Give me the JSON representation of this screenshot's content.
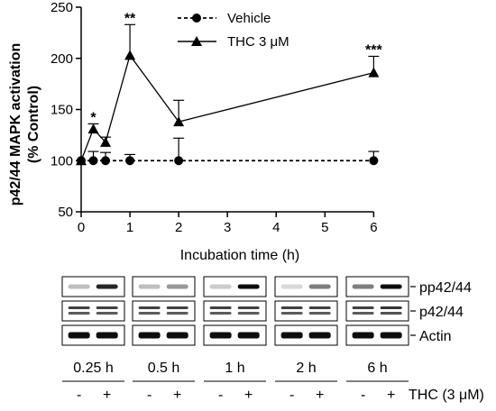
{
  "chart_data": {
    "type": "line",
    "ylabel_line1": "p42/44 MAPK activation",
    "ylabel_line2": "(% Control)",
    "xlabel": "Incubation time (h)",
    "xlim": [
      0,
      6.4
    ],
    "ylim": [
      50,
      250
    ],
    "xticks": [
      0,
      1,
      2,
      3,
      4,
      5,
      6
    ],
    "yticks": [
      50,
      100,
      150,
      200,
      250
    ],
    "legend_position": "top-right",
    "series": [
      {
        "name": "Vehicle",
        "marker": "circle",
        "line": "dashed",
        "x": [
          0,
          0.25,
          0.5,
          1,
          2,
          6
        ],
        "y": [
          100,
          100,
          100,
          100,
          100,
          100
        ],
        "err": [
          0,
          9,
          8,
          6,
          22,
          9
        ]
      },
      {
        "name": "THC 3 μM",
        "marker": "triangle",
        "line": "solid",
        "x": [
          0,
          0.25,
          0.5,
          1,
          2,
          6
        ],
        "y": [
          100,
          131,
          118,
          203,
          138,
          186
        ],
        "err": [
          0,
          5,
          5,
          30,
          21,
          16
        ]
      }
    ],
    "annotations": [
      {
        "x": 0.25,
        "y": 136,
        "text": "*"
      },
      {
        "x": 1,
        "y": 233,
        "text": "**"
      },
      {
        "x": 6,
        "y": 202,
        "text": "***"
      }
    ]
  },
  "blot": {
    "row_labels": [
      "pp42/44",
      "p42/44",
      "Actin"
    ],
    "times": [
      "0.25 h",
      "0.5 h",
      "1 h",
      "2 h",
      "6 h"
    ],
    "treatment_symbols": [
      "-",
      "+"
    ],
    "treatment_label": "THC (3 μM)",
    "band_intensity": [
      [
        [
          0.25,
          0.85
        ],
        [
          0.25,
          0.4
        ],
        [
          0.2,
          0.95
        ],
        [
          0.15,
          0.5
        ],
        [
          0.5,
          0.95
        ]
      ],
      [
        [
          0.75,
          0.75
        ],
        [
          0.75,
          0.75
        ],
        [
          0.75,
          0.75
        ],
        [
          0.75,
          0.75
        ],
        [
          0.75,
          0.8
        ]
      ],
      [
        [
          0.95,
          0.95
        ],
        [
          0.95,
          0.95
        ],
        [
          0.95,
          0.95
        ],
        [
          0.95,
          0.95
        ],
        [
          0.95,
          0.95
        ]
      ]
    ]
  }
}
